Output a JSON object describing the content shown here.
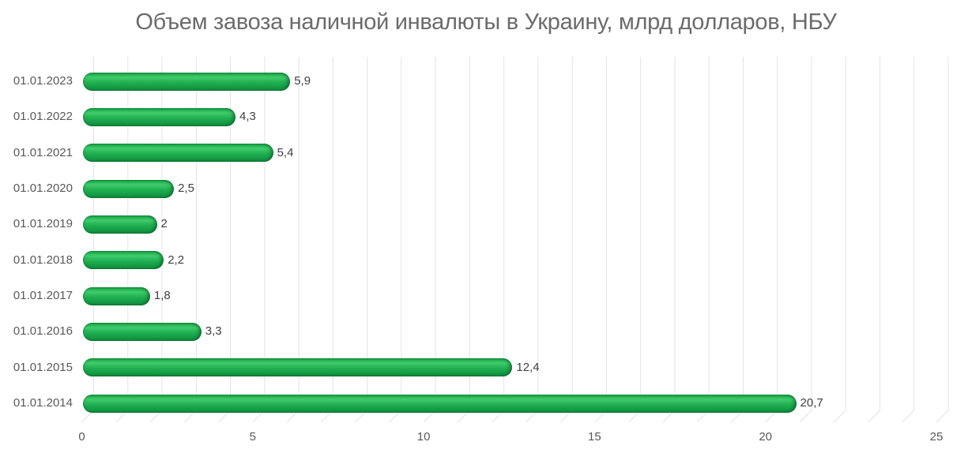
{
  "chart_data": {
    "type": "bar",
    "orientation": "horizontal",
    "style": "3d-cylinder",
    "title": "Объем завоза наличной инвалюты в Украину, млрд долларов, НБУ",
    "categories": [
      "01.01.2023",
      "01.01.2022",
      "01.01.2021",
      "01.01.2020",
      "01.01.2019",
      "01.01.2018",
      "01.01.2017",
      "01.01.2016",
      "01.01.2015",
      "01.01.2014"
    ],
    "values": [
      5.9,
      4.3,
      5.4,
      2.5,
      2,
      2.2,
      1.8,
      3.3,
      12.4,
      20.7
    ],
    "value_labels": [
      "5,9",
      "4,3",
      "5,4",
      "2,5",
      "2",
      "2,2",
      "1,8",
      "3,3",
      "12,4",
      "20,7"
    ],
    "xlabel": "",
    "ylabel": "",
    "xlim": [
      0,
      25
    ],
    "x_ticks": [
      0,
      5,
      10,
      15,
      20,
      25
    ],
    "x_tick_labels": [
      "0",
      "5",
      "10",
      "15",
      "20",
      "25"
    ],
    "x_minor_step": 1,
    "grid": true,
    "legend": false,
    "colors": {
      "bar": "#1fae4f",
      "bar_gradient": [
        "#17953f 0%",
        "#1fa94c 8%",
        "#36c363 20%",
        "#3fcb6d 28%",
        "#2dbb5b 42%",
        "#1ead4f 58%",
        "#18a049 75%",
        "#11913f 90%",
        "#0b7c32 100%"
      ],
      "gridline": "#e3e3e3",
      "title_text": "#6b6b6b",
      "axis_text": "#595959",
      "data_label_text": "#404040",
      "background": "#ffffff"
    }
  }
}
